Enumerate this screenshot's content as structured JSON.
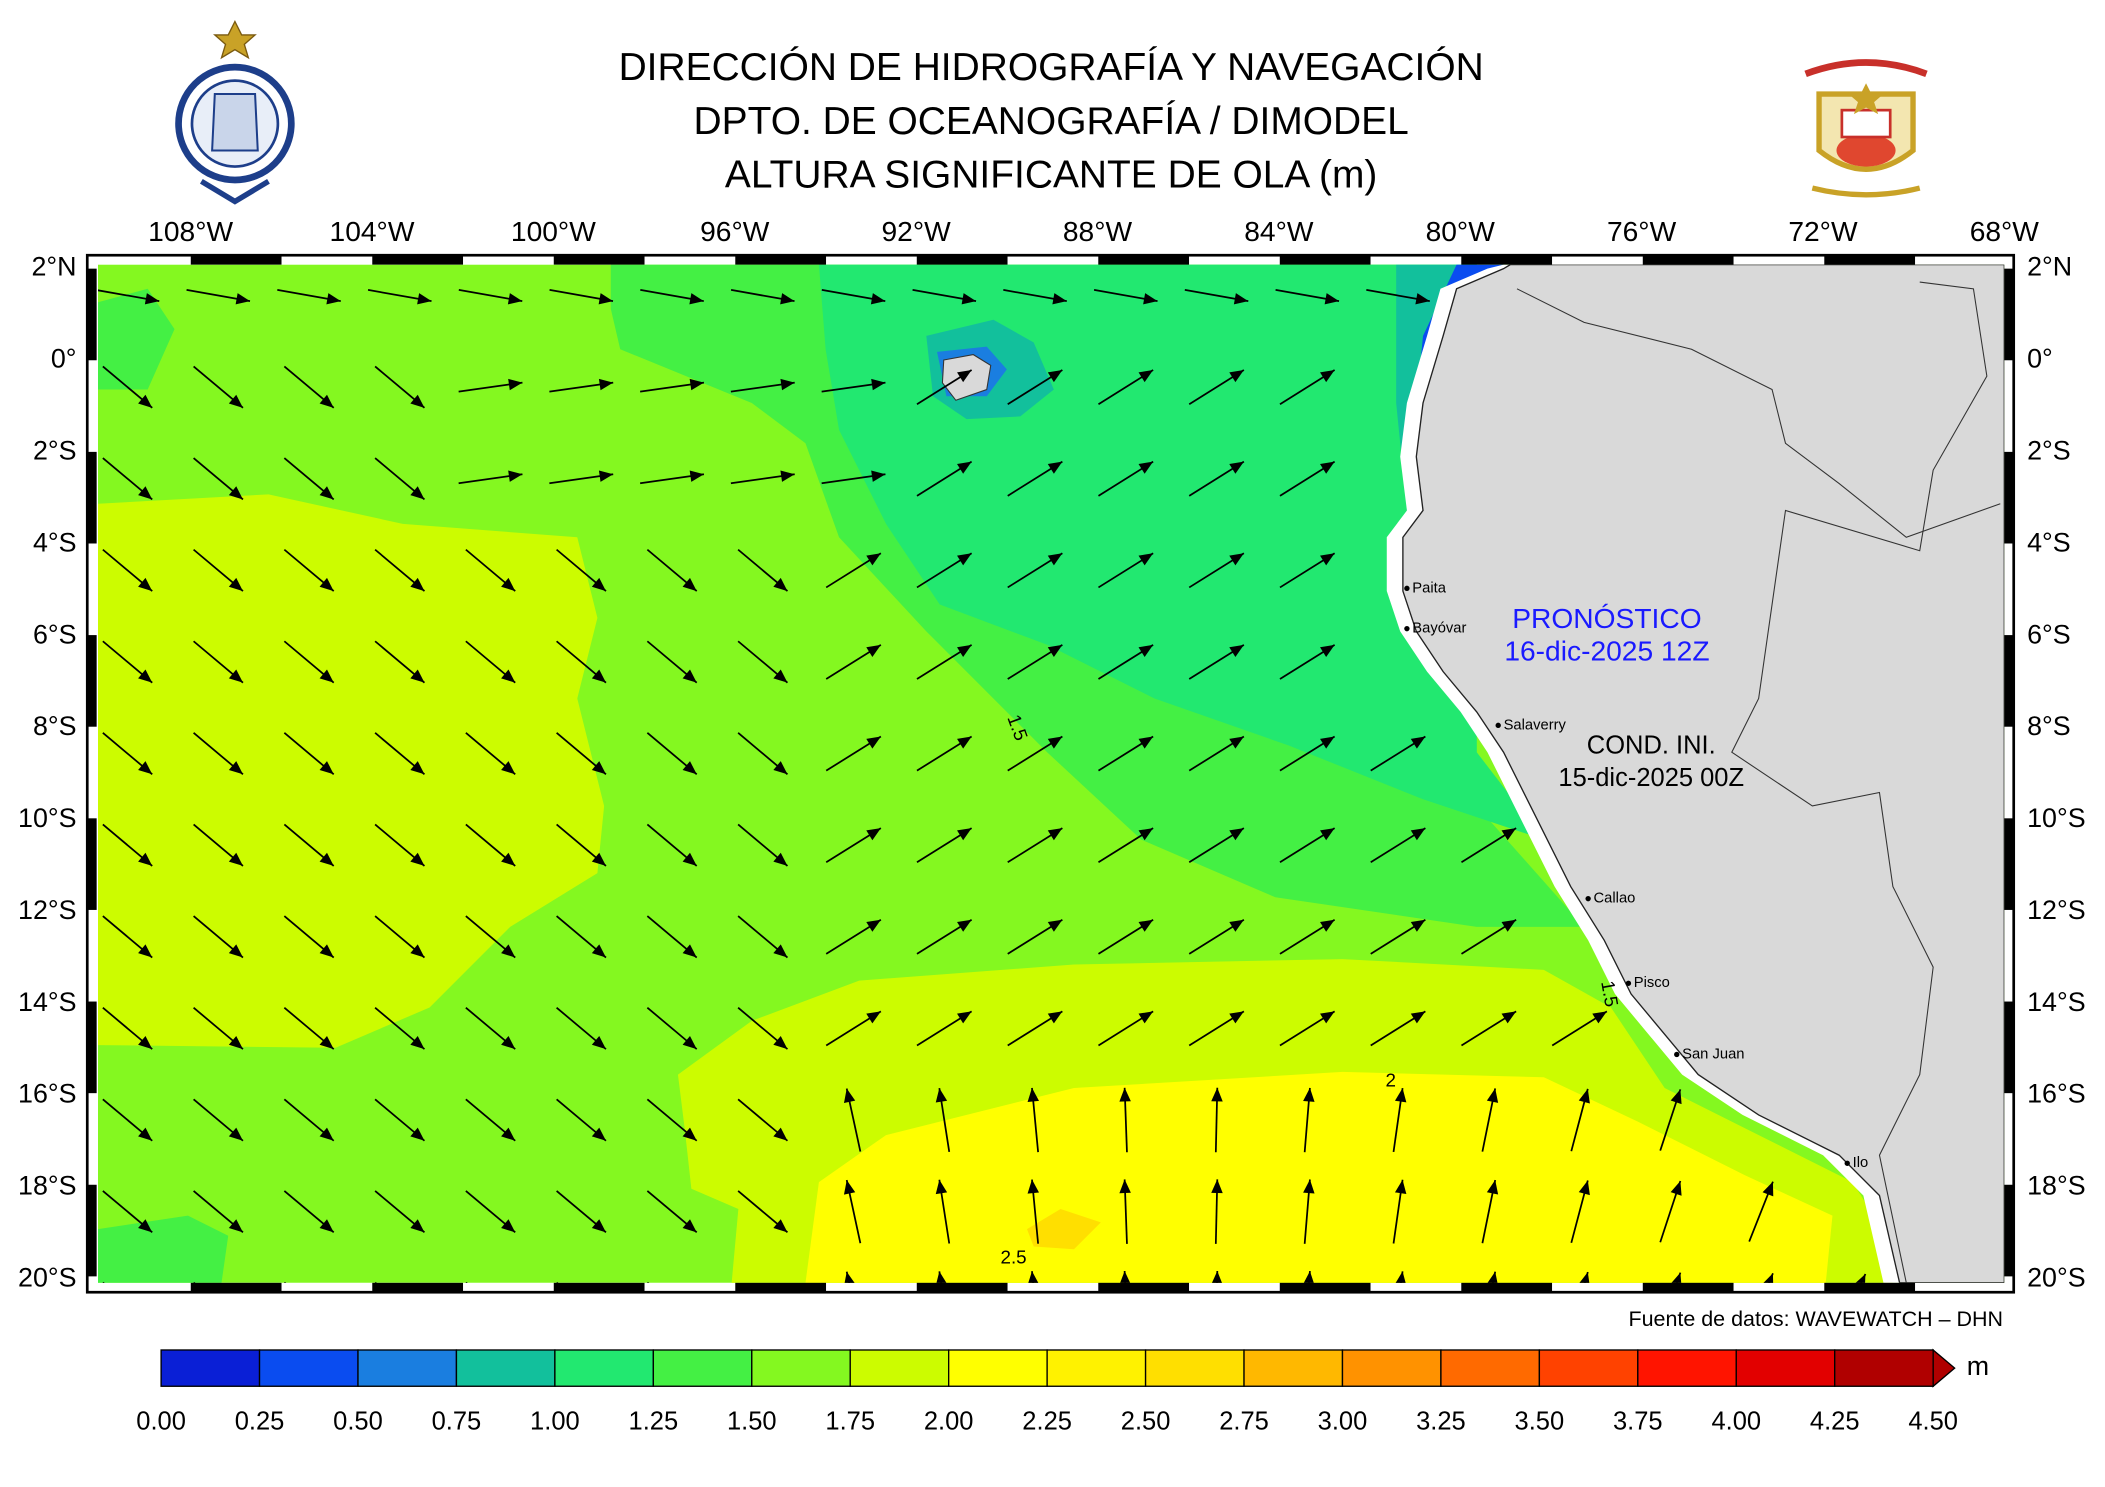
{
  "header": {
    "title_lines": [
      "DIRECCIÓN DE HIDROGRAFÍA Y NAVEGACIÓN",
      "DPTO. DE OCEANOGRAFÍA / DIMODEL",
      "ALTURA SIGNIFICANTE DE OLA (m)"
    ]
  },
  "map": {
    "lon_labels": [
      "108°W",
      "104°W",
      "100°W",
      "96°W",
      "92°W",
      "88°W",
      "84°W",
      "80°W",
      "76°W",
      "72°W",
      "68°W"
    ],
    "lat_labels": [
      "2°N",
      "0°",
      "2°S",
      "4°S",
      "6°S",
      "8°S",
      "10°S",
      "12°S",
      "14°S",
      "16°S",
      "18°S",
      "20°S"
    ],
    "ports": [
      "Paita",
      "Bayóvar",
      "Salaverry",
      "Callao",
      "Pisco",
      "San Juan",
      "Ilo"
    ],
    "contour_labels": [
      "1.5",
      "1.5",
      "2",
      "2.5"
    ],
    "forecast": {
      "label": "PRONÓSTICO",
      "time": "16-dic-2025 12Z"
    },
    "initial_condition": {
      "label": "COND. INI.",
      "time": "15-dic-2025 00Z"
    },
    "source": "Fuente de datos: WAVEWATCH – DHN"
  },
  "colorbar": {
    "unit": "m",
    "labels": [
      "0.00",
      "0.25",
      "0.50",
      "0.75",
      "1.00",
      "1.25",
      "1.50",
      "1.75",
      "2.00",
      "2.25",
      "2.50",
      "2.75",
      "3.00",
      "3.25",
      "3.50",
      "3.75",
      "4.00",
      "4.25",
      "4.50"
    ],
    "colors": [
      "#0a1fd6",
      "#0a4cf0",
      "#1a7ee0",
      "#12c09c",
      "#22e870",
      "#44f044",
      "#84f820",
      "#ccfc00",
      "#ffff00",
      "#fff200",
      "#ffdf00",
      "#ffb800",
      "#ff9200",
      "#ff6a00",
      "#ff4200",
      "#ff1400",
      "#e20000",
      "#b00000"
    ]
  }
}
